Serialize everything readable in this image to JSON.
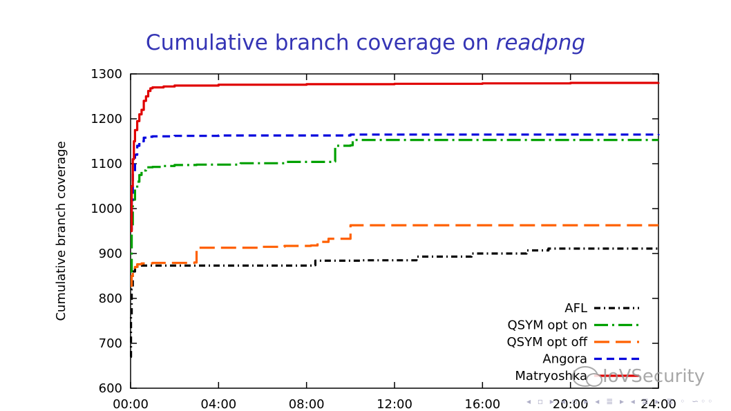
{
  "title": {
    "prefix": "Cumulative branch coverage on ",
    "italic": "readpng"
  },
  "watermark": {
    "text": "IoVSecurity",
    "logo_icon": "wechat-logo-icon"
  },
  "nav_symbols": "◂ ▫ ▸ ◂ ▫ ▸ ◂ ≣ ▸ ◂ ≣ ▸ ≣ ◦ ∽◦◦",
  "chart_data": {
    "type": "line",
    "title": "Cumulative branch coverage on readpng",
    "xlabel": "",
    "ylabel": "Cumulative branch coverage",
    "x_unit": "hours",
    "xlim": [
      0,
      24
    ],
    "ylim": [
      600,
      1300
    ],
    "x_ticks": [
      0,
      4,
      8,
      12,
      16,
      20,
      24
    ],
    "x_tick_labels": [
      "00:00",
      "04:00",
      "08:00",
      "12:00",
      "16:00",
      "20:00",
      "24:00"
    ],
    "y_ticks": [
      600,
      700,
      800,
      900,
      1000,
      1100,
      1200,
      1300
    ],
    "y_tick_labels": [
      "600",
      "700",
      "800",
      "900",
      "1000",
      "1100",
      "1200",
      "1300"
    ],
    "legend_position": "bottom-right",
    "grid": false,
    "series": [
      {
        "name": "AFL",
        "color": "#000000",
        "dash": "dash-dot",
        "x": [
          0,
          0.02,
          0.05,
          0.1,
          0.2,
          0.4,
          8.3,
          8.4,
          10.5,
          13,
          15.5,
          18,
          19,
          24
        ],
        "y": [
          670,
          760,
          820,
          860,
          871,
          873,
          874,
          884,
          885,
          893,
          900,
          907,
          911,
          911
        ]
      },
      {
        "name": "QSYM opt on",
        "color": "#00a000",
        "dash": "long-dash-dot",
        "x": [
          0,
          0.05,
          0.1,
          0.2,
          0.3,
          0.4,
          0.5,
          0.7,
          1.0,
          1.5,
          2,
          3,
          5,
          7,
          9.2,
          9.3,
          10,
          10.1,
          12,
          24
        ],
        "y": [
          860,
          960,
          1020,
          1045,
          1060,
          1075,
          1085,
          1092,
          1093,
          1095,
          1097,
          1098,
          1101,
          1104,
          1105,
          1140,
          1141,
          1153,
          1153,
          1153
        ]
      },
      {
        "name": "QSYM opt off",
        "color": "#ff6000",
        "dash": "long-dash",
        "x": [
          0,
          0.05,
          0.1,
          0.2,
          0.3,
          0.5,
          1.0,
          1.5,
          2.9,
          3.0,
          5,
          6,
          7,
          8.2,
          8.5,
          9.0,
          9.9,
          10.0,
          12,
          24
        ],
        "y": [
          828,
          850,
          862,
          870,
          876,
          878,
          879,
          879,
          880,
          913,
          913,
          915,
          917,
          918,
          926,
          933,
          933,
          963,
          963,
          963
        ]
      },
      {
        "name": "Angora",
        "color": "#0000dd",
        "dash": "short-dash",
        "x": [
          0,
          0.05,
          0.1,
          0.2,
          0.3,
          0.4,
          0.6,
          0.8,
          1.0,
          2,
          4,
          10,
          24
        ],
        "y": [
          955,
          1020,
          1080,
          1120,
          1140,
          1150,
          1158,
          1160,
          1161,
          1162,
          1163,
          1165,
          1166
        ]
      },
      {
        "name": "Matryoshka",
        "color": "#e00000",
        "dash": "solid",
        "x": [
          0,
          0.05,
          0.1,
          0.15,
          0.2,
          0.3,
          0.4,
          0.5,
          0.6,
          0.7,
          0.8,
          0.9,
          1.0,
          1.5,
          2,
          4,
          8,
          12,
          16,
          20,
          24
        ],
        "y": [
          950,
          1050,
          1110,
          1150,
          1175,
          1195,
          1210,
          1220,
          1240,
          1250,
          1262,
          1268,
          1270,
          1272,
          1274,
          1276,
          1277,
          1278,
          1279,
          1280,
          1281
        ]
      }
    ]
  }
}
